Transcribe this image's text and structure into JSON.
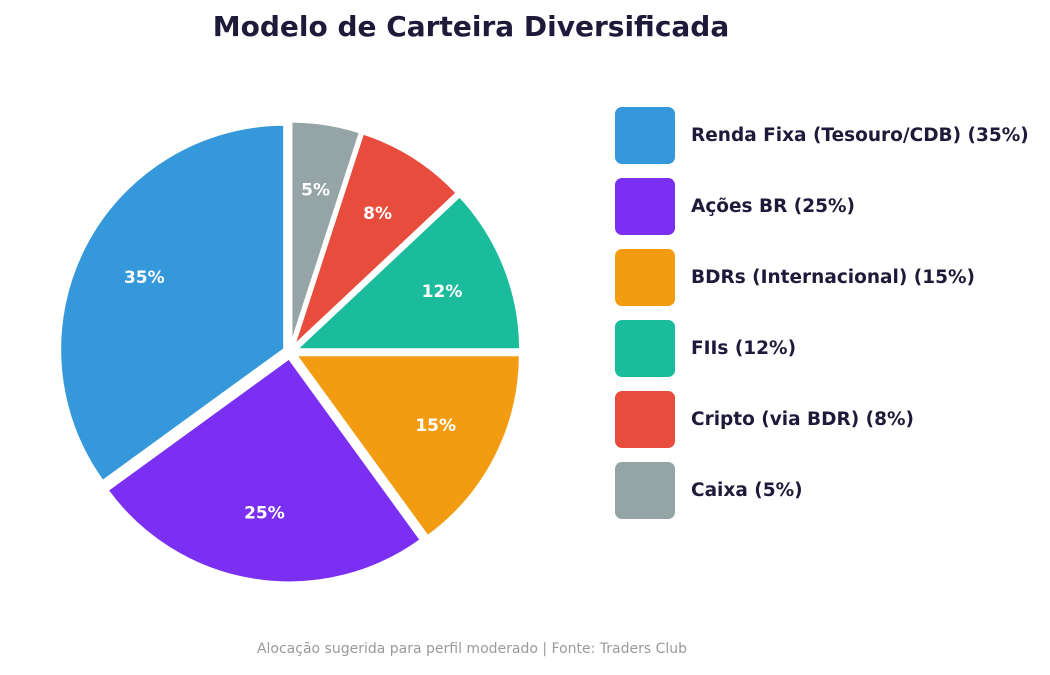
{
  "chart_data": {
    "type": "pie",
    "title": "Modelo de Carteira Diversificada",
    "slices": [
      {
        "label": "Renda Fixa (Tesouro/CDB) (35%)",
        "value": 35,
        "data_label": "35%",
        "color": "#3498db"
      },
      {
        "label": "Ações BR (25%)",
        "value": 25,
        "data_label": "25%",
        "color": "#7b2ff2"
      },
      {
        "label": "BDRs (Internacional) (15%)",
        "value": 15,
        "data_label": "15%",
        "color": "#f39c12"
      },
      {
        "label": "FIIs (12%)",
        "value": 12,
        "data_label": "12%",
        "color": "#1abc9c"
      },
      {
        "label": "Cripto (via BDR) (8%)",
        "value": 8,
        "data_label": "8%",
        "color": "#e74c3c"
      },
      {
        "label": "Caixa (5%)",
        "value": 5,
        "data_label": "5%",
        "color": "#95a5a6"
      }
    ],
    "start": "top",
    "direction": "counterclockwise",
    "exploded": true,
    "legend_position": "right"
  },
  "footnote": "Alocação sugerida para perfil moderado | Fonte: Traders Club"
}
